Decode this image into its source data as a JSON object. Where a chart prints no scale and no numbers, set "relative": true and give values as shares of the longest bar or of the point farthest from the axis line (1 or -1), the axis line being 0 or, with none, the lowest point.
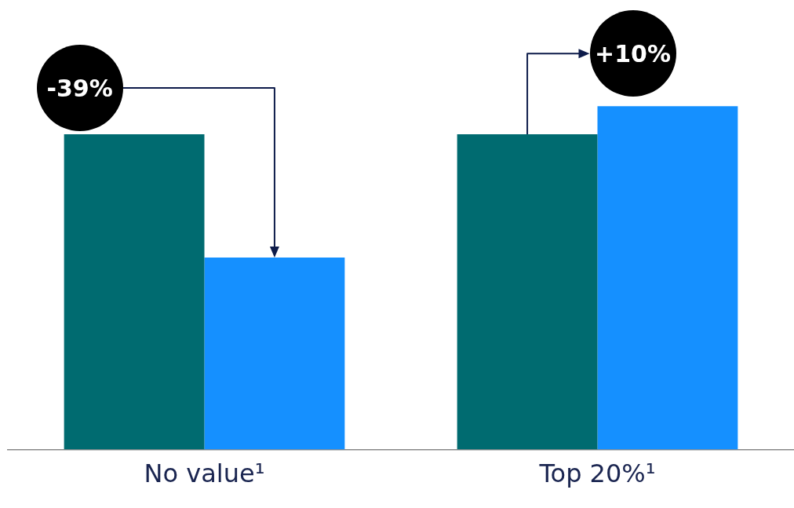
{
  "chart_data": {
    "type": "bar",
    "relative": true,
    "categories": [
      "No value¹",
      "Top 20%¹"
    ],
    "series": [
      {
        "color": "#006b70",
        "values": [
          0.918,
          0.918
        ]
      },
      {
        "color": "#1590ff",
        "values": [
          0.559,
          1
        ]
      }
    ],
    "annotations": [
      "-39%",
      "+10%"
    ],
    "grid": false,
    "legend": false
  }
}
